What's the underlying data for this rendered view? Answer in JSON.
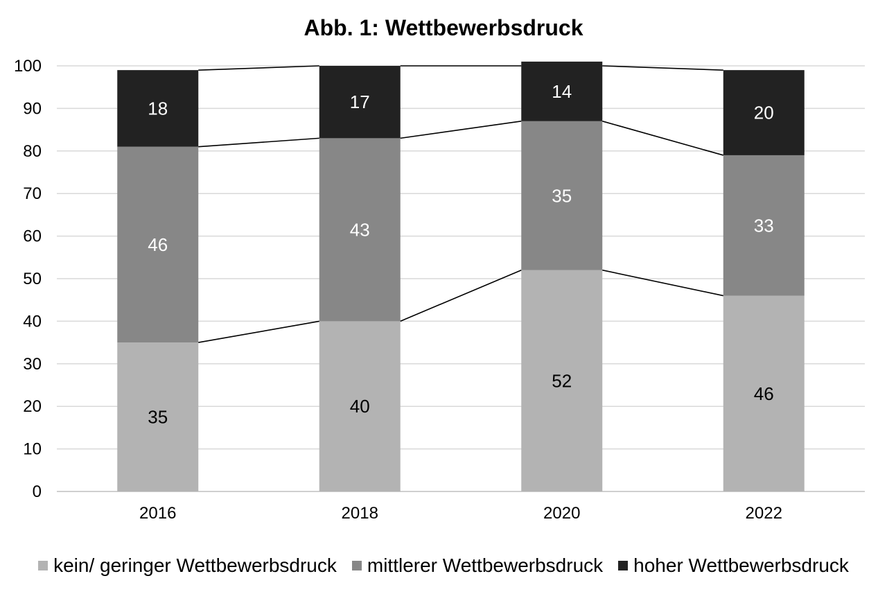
{
  "chart_data": {
    "type": "bar",
    "stacked": true,
    "title": "Abb. 1: Wettbewerbsdruck",
    "xlabel": "",
    "ylabel": "",
    "categories": [
      "2016",
      "2018",
      "2020",
      "2022"
    ],
    "ylim": [
      0,
      100
    ],
    "yticks": [
      "0",
      "10",
      "20",
      "30",
      "40",
      "50",
      "60",
      "70",
      "80",
      "90",
      "100"
    ],
    "grid": true,
    "series_lines": true,
    "series": [
      {
        "name": "kein/ geringer Wettbewerbsdruck",
        "values": [
          35,
          40,
          52,
          46
        ],
        "color": "#b3b3b3",
        "label_color": "#000000"
      },
      {
        "name": "mittlerer Wettbewerbsdruck",
        "values": [
          46,
          43,
          35,
          33
        ],
        "color": "#878787",
        "label_color": "#ffffff"
      },
      {
        "name": "hoher Wettbewerbsdruck",
        "values": [
          18,
          17,
          14,
          20
        ],
        "color": "#222222",
        "label_color": "#ffffff"
      }
    ],
    "legend_position": "bottom"
  }
}
